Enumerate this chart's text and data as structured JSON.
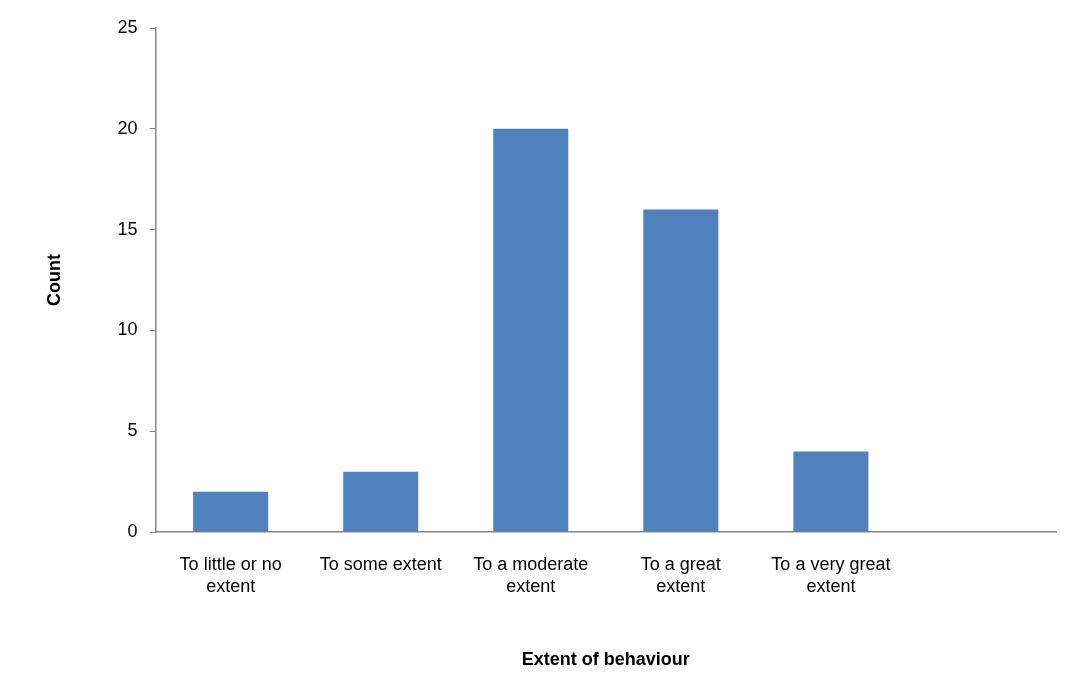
{
  "chart_data": {
    "type": "bar",
    "xlabel": "Extent of behaviour",
    "ylabel": "Count",
    "categories": [
      "To little or no extent",
      "To some extent",
      "To a moderate extent",
      "To a great extent",
      "To a very great extent",
      null
    ],
    "values": [
      2,
      3,
      20,
      16,
      4,
      null
    ],
    "color": "#4f81bd",
    "ylim": [
      0,
      25
    ],
    "yticks": [
      0,
      5,
      10,
      15,
      20,
      25
    ],
    "grid": false,
    "legend": false
  }
}
